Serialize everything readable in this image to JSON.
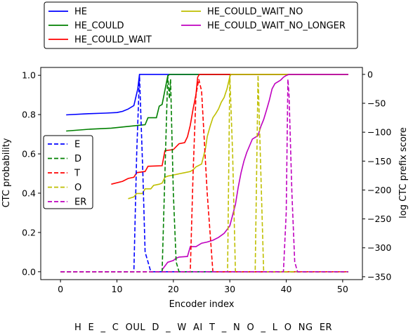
{
  "chart_data": {
    "type": "line",
    "xlabel": "Encoder index",
    "ylabel_left": "CTC probability",
    "ylabel_right": "log CTC prefix score",
    "caption": "H  E  _  C  OUL  D  _  W  AI  T  _  N  O  _  L  O  NG  ER",
    "xlim": [
      -3.5,
      53.5
    ],
    "ylim_left": [
      -0.04,
      1.04
    ],
    "ylim_right": [
      -355,
      12
    ],
    "x_ticks": [
      0,
      10,
      20,
      30,
      40,
      50
    ],
    "y_ticks_left": [
      0.0,
      0.2,
      0.4,
      0.6,
      0.8,
      1.0
    ],
    "y_ticks_left_labels": [
      "0.0",
      "0.2",
      "0.4",
      "0.6",
      "0.8",
      "1.0"
    ],
    "y_ticks_right": [
      0,
      -50,
      -100,
      -150,
      -200,
      -250,
      -300,
      -350
    ],
    "y_ticks_right_labels": [
      "0",
      "−50",
      "−100",
      "−150",
      "−200",
      "−250",
      "−300",
      "−350"
    ],
    "grid": false,
    "legend_top": {
      "placement": "top",
      "columns": [
        [
          "HE",
          "HE_COULD",
          "HE_COULD_WAIT"
        ],
        [
          "HE_COULD_WAIT_NO",
          "HE_COULD_WAIT_NO_LONGER"
        ]
      ]
    },
    "legend_inner": {
      "placement": "center-left",
      "entries": [
        "E",
        "D",
        "T",
        "O",
        "ER"
      ]
    },
    "prefix_series": [
      {
        "name": "HE",
        "color": "#0000ff",
        "points": [
          [
            1,
            -70
          ],
          [
            5,
            -68
          ],
          [
            8,
            -67
          ],
          [
            10,
            -66
          ],
          [
            11,
            -64
          ],
          [
            12,
            -60
          ],
          [
            13,
            -54
          ],
          [
            13.7,
            -25
          ],
          [
            14,
            0
          ],
          [
            51,
            0
          ]
        ]
      },
      {
        "name": "HE_COULD",
        "color": "#008000",
        "points": [
          [
            1,
            -98
          ],
          [
            5,
            -95
          ],
          [
            9,
            -93
          ],
          [
            12,
            -90
          ],
          [
            14,
            -88
          ],
          [
            15,
            -87
          ],
          [
            15.5,
            -75
          ],
          [
            17,
            -75
          ],
          [
            17.5,
            -55
          ],
          [
            18,
            -52
          ],
          [
            19,
            -3
          ],
          [
            19.3,
            0
          ],
          [
            51,
            0
          ]
        ]
      },
      {
        "name": "HE_COULD_WAIT",
        "color": "#ff0000",
        "points": [
          [
            9,
            -190
          ],
          [
            11,
            -185
          ],
          [
            12,
            -180
          ],
          [
            13,
            -178
          ],
          [
            13.5,
            -170
          ],
          [
            15,
            -168
          ],
          [
            15.5,
            -159
          ],
          [
            18,
            -158
          ],
          [
            18.5,
            -132
          ],
          [
            20,
            -130
          ],
          [
            21,
            -120
          ],
          [
            22,
            -118
          ],
          [
            22.5,
            -108
          ],
          [
            23,
            -88
          ],
          [
            23.5,
            -60
          ],
          [
            24,
            -35
          ],
          [
            24.3,
            -5
          ],
          [
            24.6,
            0
          ],
          [
            51,
            0
          ]
        ]
      },
      {
        "name": "HE_COULD_WAIT_NO",
        "color": "#bfbf00",
        "points": [
          [
            12,
            -215
          ],
          [
            13,
            -212
          ],
          [
            13.5,
            -206
          ],
          [
            14.5,
            -206
          ],
          [
            15,
            -198
          ],
          [
            16,
            -198
          ],
          [
            16.5,
            -192
          ],
          [
            17.5,
            -190
          ],
          [
            18,
            -188
          ],
          [
            18.5,
            -178
          ],
          [
            19,
            -176
          ],
          [
            20,
            -174
          ],
          [
            21,
            -172
          ],
          [
            22,
            -170
          ],
          [
            23,
            -168
          ],
          [
            23.5,
            -165
          ],
          [
            24,
            -160
          ],
          [
            25,
            -155
          ],
          [
            25.7,
            -128
          ],
          [
            26,
            -108
          ],
          [
            26.5,
            -90
          ],
          [
            27,
            -75
          ],
          [
            27.5,
            -68
          ],
          [
            28,
            -60
          ],
          [
            28.5,
            -48
          ],
          [
            29,
            -40
          ],
          [
            29.5,
            -25
          ],
          [
            30,
            -4
          ],
          [
            30.2,
            0
          ],
          [
            51,
            0
          ]
        ]
      },
      {
        "name": "HE_COULD_WAIT_NO_LONGER",
        "color": "#bf00bf",
        "points": [
          [
            18,
            -338
          ],
          [
            19,
            -325
          ],
          [
            20,
            -322
          ],
          [
            20.5,
            -318
          ],
          [
            21,
            -316
          ],
          [
            22.5,
            -315
          ],
          [
            23,
            -298
          ],
          [
            24,
            -298
          ],
          [
            25,
            -292
          ],
          [
            26,
            -290
          ],
          [
            27,
            -287
          ],
          [
            28,
            -282
          ],
          [
            29,
            -275
          ],
          [
            30,
            -262
          ],
          [
            31,
            -225
          ],
          [
            31.5,
            -195
          ],
          [
            32,
            -170
          ],
          [
            32.5,
            -150
          ],
          [
            33,
            -135
          ],
          [
            34,
            -112
          ],
          [
            35,
            -106
          ],
          [
            35.5,
            -90
          ],
          [
            36,
            -78
          ],
          [
            36.5,
            -62
          ],
          [
            37,
            -45
          ],
          [
            37.5,
            -25
          ],
          [
            38,
            -16
          ],
          [
            39,
            -10
          ],
          [
            39.5,
            -5
          ],
          [
            40,
            -2
          ],
          [
            40.5,
            0
          ],
          [
            51,
            0
          ]
        ]
      }
    ],
    "ctc_series": [
      {
        "name": "E",
        "color": "#0000ff",
        "points": [
          [
            0,
            0
          ],
          [
            13,
            0
          ],
          [
            13.5,
            0.6
          ],
          [
            14,
            1.0
          ],
          [
            14.6,
            0.5
          ],
          [
            15,
            0.1
          ],
          [
            15.5,
            0.05
          ],
          [
            16,
            0
          ],
          [
            51,
            0
          ]
        ]
      },
      {
        "name": "D",
        "color": "#008000",
        "points": [
          [
            0,
            0
          ],
          [
            18,
            0
          ],
          [
            18.5,
            0.5
          ],
          [
            19,
            1.0
          ],
          [
            19.3,
            0.88
          ],
          [
            19.5,
            0.98
          ],
          [
            20,
            0.4
          ],
          [
            20.5,
            0.05
          ],
          [
            21,
            0
          ],
          [
            51,
            0
          ]
        ]
      },
      {
        "name": "T",
        "color": "#ff0000",
        "points": [
          [
            0,
            0
          ],
          [
            23,
            0
          ],
          [
            23.5,
            0.5
          ],
          [
            24,
            0.9
          ],
          [
            24.5,
            0.98
          ],
          [
            25,
            0.92
          ],
          [
            26,
            0.4
          ],
          [
            27,
            0
          ],
          [
            51,
            0
          ]
        ]
      },
      {
        "name": "O",
        "color": "#bfbf00",
        "points": [
          [
            0,
            0
          ],
          [
            29.6,
            0
          ],
          [
            30,
            1.0
          ],
          [
            30.5,
            0.6
          ],
          [
            31,
            0
          ],
          [
            34.5,
            0
          ],
          [
            35,
            1.0
          ],
          [
            35.5,
            0.5
          ],
          [
            36,
            0
          ],
          [
            51,
            0
          ]
        ]
      },
      {
        "name": "ER",
        "color": "#bf00bf",
        "points": [
          [
            0,
            0
          ],
          [
            39.5,
            0
          ],
          [
            40,
            0.3
          ],
          [
            40.3,
            0.98
          ],
          [
            40.5,
            0.9
          ],
          [
            41,
            0.4
          ],
          [
            41.5,
            0.05
          ],
          [
            42,
            0
          ],
          [
            51,
            0
          ]
        ]
      }
    ]
  }
}
